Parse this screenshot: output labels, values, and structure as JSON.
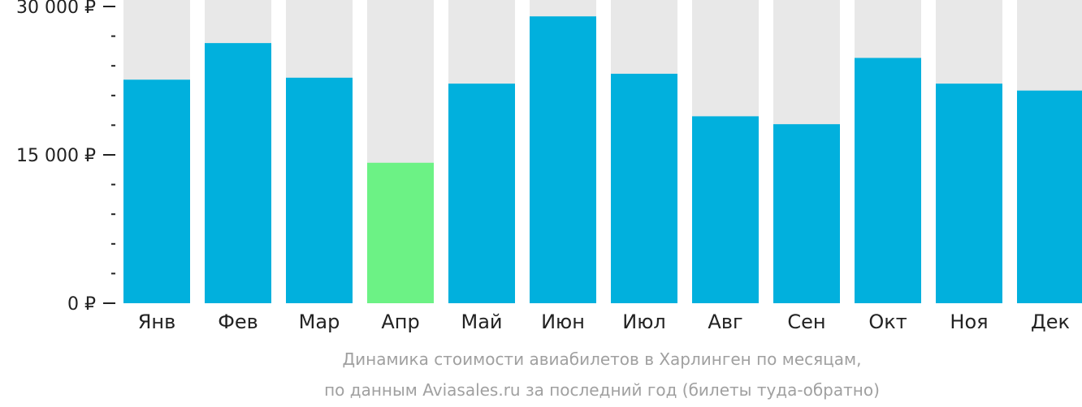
{
  "chart_data": {
    "type": "bar",
    "categories": [
      "Янв",
      "Фев",
      "Мар",
      "Апр",
      "Май",
      "Июн",
      "Июл",
      "Авг",
      "Сен",
      "Окт",
      "Ноя",
      "Дек"
    ],
    "values": [
      22600,
      26300,
      22800,
      14200,
      22200,
      29000,
      23200,
      18900,
      18100,
      24800,
      22200,
      21500
    ],
    "ylim": [
      0,
      30000
    ],
    "yticks": [
      {
        "value": 0,
        "label": "0 ₽"
      },
      {
        "value": 15000,
        "label": "15 000 ₽"
      },
      {
        "value": 30000,
        "label": "30 000 ₽"
      }
    ],
    "minor_tick_step": 3000,
    "highlight_category": "Апр",
    "colors": {
      "bar": "#01b0dd",
      "highlight": "#6cf285",
      "background_bar": "#e8e8e8",
      "axis": "#222222"
    },
    "grid": false,
    "legend": "none",
    "caption": [
      "Динамика стоимости авиабилетов в Харлинген по месяцам,",
      "по данным Aviasales.ru за последний год (билеты туда-обратно)"
    ]
  }
}
